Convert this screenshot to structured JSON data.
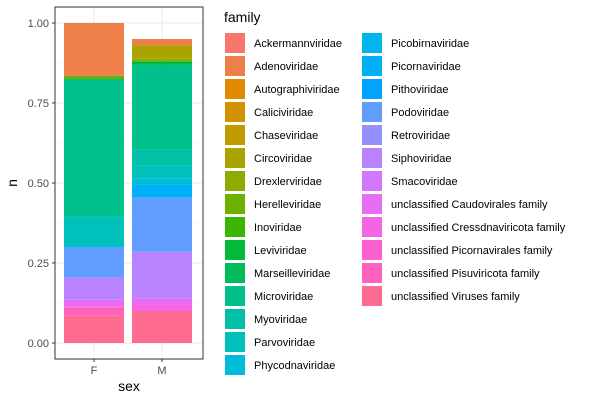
{
  "chart_data": {
    "type": "bar",
    "stacked": true,
    "xlabel": "sex",
    "ylabel": "n",
    "ylim": [
      0,
      1
    ],
    "yticks": [
      "0.00",
      "0.25",
      "0.50",
      "0.75",
      "1.00"
    ],
    "categories": [
      "F",
      "M"
    ],
    "legend_title": "family",
    "legend_position": "right",
    "grid": true,
    "series": [
      {
        "name": "Ackermannviridae",
        "color": "#F8766D",
        "values": [
          0,
          0
        ]
      },
      {
        "name": "Adenoviridae",
        "color": "#EF7F49",
        "values": [
          0.165,
          0.02
        ]
      },
      {
        "name": "Autographiviridae",
        "color": "#E38900",
        "values": [
          0,
          0
        ]
      },
      {
        "name": "Caliciviridae",
        "color": "#D39200",
        "values": [
          0,
          0
        ]
      },
      {
        "name": "Chaseviridae",
        "color": "#C09B00",
        "values": [
          0,
          0
        ]
      },
      {
        "name": "Circoviridae",
        "color": "#A9A400",
        "values": [
          0,
          0.04
        ]
      },
      {
        "name": "Drexlerviridae",
        "color": "#8EAB00",
        "values": [
          0,
          0.01
        ]
      },
      {
        "name": "Herelleviridae",
        "color": "#6BB100",
        "values": [
          0.01,
          0
        ]
      },
      {
        "name": "Inoviridae",
        "color": "#39B600",
        "values": [
          0,
          0
        ]
      },
      {
        "name": "Leviviridae",
        "color": "#00BA38",
        "values": [
          0,
          0.01
        ]
      },
      {
        "name": "Marseilleviridae",
        "color": "#00BD5C",
        "values": [
          0,
          0
        ]
      },
      {
        "name": "Microviridae",
        "color": "#00C08B",
        "values": [
          0.43,
          0.265
        ]
      },
      {
        "name": "Myoviridae",
        "color": "#00C1A7",
        "values": [
          0,
          0.05
        ]
      },
      {
        "name": "Parvoviridae",
        "color": "#00C0BB",
        "values": [
          0.095,
          0.04
        ]
      },
      {
        "name": "Phycodnaviridae",
        "color": "#00BCD8",
        "values": [
          0,
          0.02
        ]
      },
      {
        "name": "Picobirnaviridae",
        "color": "#00B6EB",
        "values": [
          0,
          0
        ]
      },
      {
        "name": "Picornaviridae",
        "color": "#00B0F6",
        "values": [
          0,
          0.04
        ]
      },
      {
        "name": "Pithoviridae",
        "color": "#00A5FF",
        "values": [
          0,
          0
        ]
      },
      {
        "name": "Podoviridae",
        "color": "#619CFF",
        "values": [
          0.095,
          0.17
        ]
      },
      {
        "name": "Retroviridae",
        "color": "#9590FF",
        "values": [
          0,
          0
        ]
      },
      {
        "name": "Siphoviridae",
        "color": "#B983FF",
        "values": [
          0.07,
          0.145
        ]
      },
      {
        "name": "Smacoviridae",
        "color": "#D277FF",
        "values": [
          0,
          0
        ]
      },
      {
        "name": "unclassified Caudovirales family",
        "color": "#E76BF3",
        "values": [
          0.02,
          0.02
        ]
      },
      {
        "name": "unclassified Cressdnaviricota family",
        "color": "#F564E3",
        "values": [
          0,
          0.02
        ]
      },
      {
        "name": "unclassified Picornavirales family",
        "color": "#FD61D1",
        "values": [
          0.005,
          0
        ]
      },
      {
        "name": "unclassified Pisuviricota family",
        "color": "#FF62BC",
        "values": [
          0.025,
          0
        ]
      },
      {
        "name": "unclassified Viruses family",
        "color": "#FF6C91",
        "values": [
          0.085,
          0.1
        ]
      }
    ]
  }
}
